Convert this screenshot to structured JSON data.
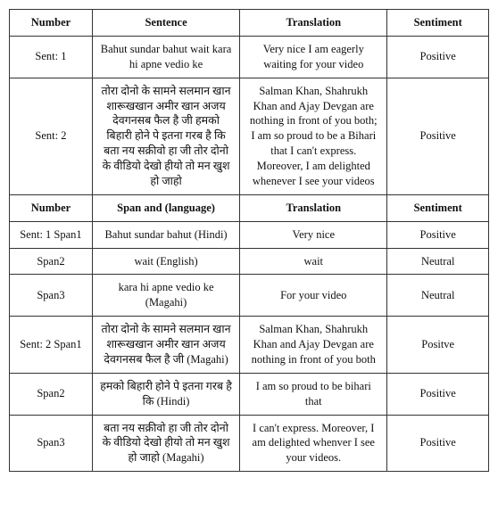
{
  "table1": {
    "header": {
      "number": "Number",
      "sentence": "Sentence",
      "translation": "Translation",
      "sentiment": "Sentiment"
    },
    "rows": [
      {
        "number": "Sent: 1",
        "sentence": "Bahut sundar bahut wait kara hi apne vedio ke",
        "translation": "Very nice I am eagerly waiting for your video",
        "sentiment": "Positive"
      },
      {
        "number": "Sent: 2",
        "sentence": "तोरा दोनो के सामने सलमान खान शारूखखान अमीर खान अजय देवगनसब फैल है जी हमको बिहारी होने पे इतना गरब है कि बता नय सक्रीवो हा जी तोर दोनो के वीडियो देखो हीयो तो मन खुश हो जाहो",
        "translation": "Salman Khan, Shahrukh Khan and Ajay Devgan are nothing in front of you both; I am so proud to be a Bihari that I can't express. Moreover, I am delighted whenever I see your videos",
        "sentiment": "Positive"
      }
    ]
  },
  "table2": {
    "header": {
      "number": "Number",
      "span": "Span and (language)",
      "translation": "Translation",
      "sentiment": "Sentiment"
    },
    "rows": [
      {
        "number": "Sent: 1 Span1",
        "span": "Bahut sundar bahut (Hindi)",
        "translation": "Very nice",
        "sentiment": "Positive"
      },
      {
        "number": "Span2",
        "span": "wait (English)",
        "translation": "wait",
        "sentiment": "Neutral"
      },
      {
        "number": "Span3",
        "span": "kara hi apne vedio ke (Magahi)",
        "translation": "For your video",
        "sentiment": "Neutral"
      },
      {
        "number": "Sent: 2 Span1",
        "span": "तोरा दोनो के सामने सलमान खान शारूखखान अमीर खान अजय देवगनसब फैल है जी (Magahi)",
        "translation": "Salman Khan, Shahrukh Khan and Ajay Devgan are nothing in front of you both",
        "sentiment": "Positve"
      },
      {
        "number": "Span2",
        "span": "हमको बिहारी होने पे इतना गरब है कि (Hindi)",
        "translation": "I am so proud to be bihari that",
        "sentiment": "Positive"
      },
      {
        "number": "Span3",
        "span": "बता नय सक्रीवो हा जी तोर दोनो के वीडियो देखो हीयो तो मन खुश हो जाहो (Magahi)",
        "translation": "I can't express. Moreover, I am delighted whenver I see your videos.",
        "sentiment": "Positive"
      }
    ]
  }
}
